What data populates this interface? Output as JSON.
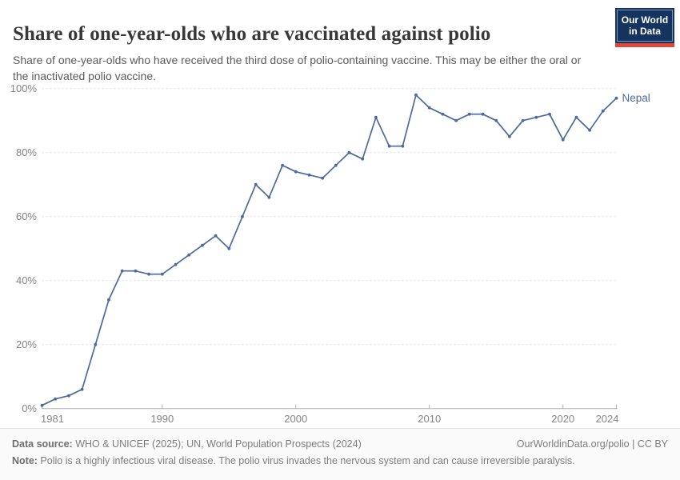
{
  "header": {
    "title": "Share of one-year-olds who are vaccinated against polio",
    "subtitle": "Share of one-year-olds who have received the third dose of polio-containing vaccine. This may be either the oral or the inactivated polio vaccine.",
    "logo_line1": "Our World",
    "logo_line2": "in Data"
  },
  "chart_data": {
    "type": "line",
    "title": "Share of one-year-olds who are vaccinated against polio",
    "xlabel": "",
    "ylabel": "",
    "xlim": [
      1981,
      2024
    ],
    "ylim": [
      0,
      100
    ],
    "grid": "horizontal dashed",
    "legend_position": "end-of-line label",
    "x_ticks": [
      1981,
      1990,
      2000,
      2010,
      2020,
      2024
    ],
    "y_tick_labels": [
      "0%",
      "20%",
      "40%",
      "60%",
      "80%",
      "100%"
    ],
    "series": [
      {
        "name": "Nepal",
        "color": "#4C6A9C",
        "x": [
          1981,
          1982,
          1983,
          1984,
          1985,
          1986,
          1987,
          1988,
          1989,
          1990,
          1991,
          1992,
          1993,
          1994,
          1995,
          1996,
          1997,
          1998,
          1999,
          2000,
          2001,
          2002,
          2003,
          2004,
          2005,
          2006,
          2007,
          2008,
          2009,
          2010,
          2011,
          2012,
          2013,
          2014,
          2015,
          2016,
          2017,
          2018,
          2019,
          2020,
          2021,
          2022,
          2023,
          2024
        ],
        "values": [
          1,
          3,
          4,
          6,
          20,
          34,
          43,
          43,
          42,
          42,
          45,
          48,
          51,
          54,
          50,
          60,
          70,
          66,
          76,
          74,
          73,
          72,
          76,
          80,
          78,
          91,
          82,
          82,
          98,
          94,
          92,
          90,
          92,
          92,
          90,
          85,
          90,
          91,
          92,
          84,
          91,
          87,
          93,
          97
        ]
      }
    ]
  },
  "footer": {
    "datasource_label": "Data source:",
    "datasource_text": " WHO & UNICEF (2025); UN, World Population Prospects (2024)",
    "rights": "OurWorldinData.org/polio | CC BY",
    "note_label": "Note:",
    "note_text": " Polio is a highly infectious viral disease. The polio virus invades the nervous system and can cause irreversible paralysis."
  },
  "colors": {
    "accent": "#4C6A9C",
    "grid": "#dcdcdc",
    "axis": "#b0b0b0",
    "tick_label": "#848484",
    "title": "#383838",
    "subtitle": "#5b5b5b",
    "footer_text": "#7d7d7d",
    "logo_bg": "#15335f",
    "logo_red": "#e0463a"
  }
}
